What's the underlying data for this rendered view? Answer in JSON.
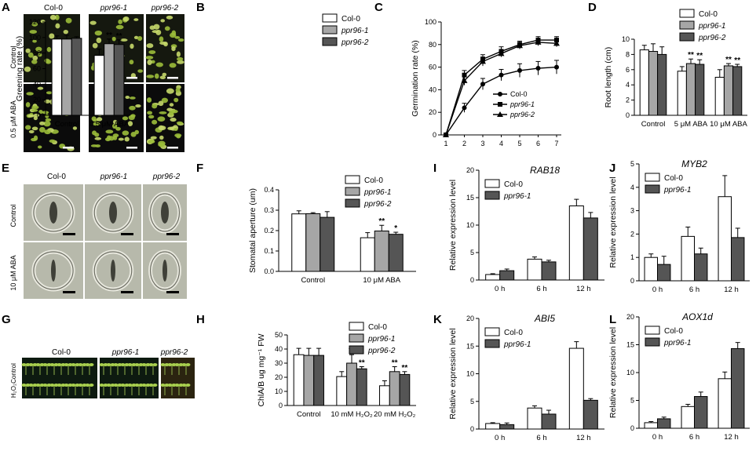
{
  "figure": {
    "panels": {
      "A": {
        "letter": "A",
        "cols": [
          "Col-0",
          "ppr96-1",
          "ppr96-2"
        ],
        "rows": [
          "Control",
          "0.5 μM ABA"
        ]
      },
      "E": {
        "letter": "E",
        "cols": [
          "Col-0",
          "ppr96-1",
          "ppr96-2"
        ],
        "rows": [
          "Control",
          "10 μM ABA"
        ]
      },
      "G": {
        "letter": "G",
        "cols": [
          "Col-0",
          "ppr96-1",
          "ppr96-2"
        ],
        "rows": [
          "Control",
          "H₂O₂"
        ]
      }
    },
    "colors": {
      "col0": "#ffffff",
      "ppr1": "#a6a6a6",
      "ppr2": "#555555",
      "plant": "#6a8a2a",
      "bg_dark": "#111111"
    }
  },
  "chart_data": [
    {
      "panel": "B",
      "type": "bar",
      "ylabel": "Greening rate (%)",
      "ylim": [
        0,
        120
      ],
      "yticks": [
        0,
        20,
        40,
        60,
        80,
        100,
        120
      ],
      "categories": [
        "Control",
        "0.5 μM ABA"
      ],
      "series": [
        {
          "name": "Col-0",
          "values": [
            98,
            77
          ],
          "err": [
            4,
            8
          ]
        },
        {
          "name": "ppr96-1",
          "values": [
            98,
            92
          ],
          "err": [
            5,
            6
          ]
        },
        {
          "name": "ppr96-2",
          "values": [
            99,
            91
          ],
          "err": [
            2,
            6
          ]
        }
      ],
      "annotations": [
        {
          "cat": 1,
          "series": 1,
          "text": "**"
        },
        {
          "cat": 1,
          "series": 2,
          "text": "**"
        }
      ],
      "legend": "top-right"
    },
    {
      "panel": "C",
      "type": "line",
      "ylabel": "Germination rate (%)",
      "ylim": [
        0,
        100
      ],
      "yticks": [
        0,
        20,
        40,
        60,
        80,
        100
      ],
      "x": [
        1,
        2,
        3,
        4,
        5,
        6,
        7
      ],
      "series": [
        {
          "name": "Col-0",
          "values": [
            0,
            24,
            45,
            53,
            57,
            59,
            60
          ],
          "err": [
            0,
            4,
            5,
            5,
            6,
            6,
            6
          ],
          "marker": "circle"
        },
        {
          "name": "ppr96-1",
          "values": [
            0,
            53,
            67,
            74,
            80,
            84,
            84
          ],
          "err": [
            0,
            4,
            4,
            4,
            3,
            3,
            3
          ],
          "marker": "square"
        },
        {
          "name": "ppr96-2",
          "values": [
            0,
            48,
            65,
            72,
            79,
            82,
            81
          ],
          "err": [
            0,
            4,
            4,
            3,
            3,
            3,
            3
          ],
          "marker": "triangle"
        }
      ],
      "legend": "bottom-right"
    },
    {
      "panel": "D",
      "type": "bar",
      "ylabel": "Root length (cm)",
      "ylim": [
        0,
        10
      ],
      "yticks": [
        0,
        2,
        4,
        6,
        8,
        10
      ],
      "categories": [
        "Control",
        "5 μM ABA",
        "10 μM ABA"
      ],
      "series": [
        {
          "name": "Col-0",
          "values": [
            8.6,
            5.8,
            5.0
          ],
          "err": [
            0.6,
            0.6,
            1.0
          ]
        },
        {
          "name": "ppr96-1",
          "values": [
            8.4,
            6.8,
            6.5
          ],
          "err": [
            1.0,
            0.6,
            0.3
          ]
        },
        {
          "name": "ppr96-2",
          "values": [
            8.0,
            6.7,
            6.4
          ],
          "err": [
            1.0,
            0.6,
            0.3
          ]
        }
      ],
      "annotations": [
        {
          "cat": 1,
          "series": 1,
          "text": "**"
        },
        {
          "cat": 1,
          "series": 2,
          "text": "**"
        },
        {
          "cat": 2,
          "series": 1,
          "text": "**"
        },
        {
          "cat": 2,
          "series": 2,
          "text": "**"
        }
      ],
      "legend": "top-right"
    },
    {
      "panel": "F",
      "type": "bar",
      "ylabel": "Stomatal aperture (um)",
      "ylim": [
        0,
        0.4
      ],
      "yticks": [
        0.0,
        0.1,
        0.2,
        0.3,
        0.4
      ],
      "categories": [
        "Control",
        "10 μM ABA"
      ],
      "series": [
        {
          "name": "Col-0",
          "values": [
            0.282,
            0.165
          ],
          "err": [
            0.015,
            0.025
          ]
        },
        {
          "name": "ppr96-1",
          "values": [
            0.283,
            0.198
          ],
          "err": [
            0.005,
            0.028
          ]
        },
        {
          "name": "ppr96-2",
          "values": [
            0.265,
            0.182
          ],
          "err": [
            0.028,
            0.01
          ]
        }
      ],
      "annotations": [
        {
          "cat": 1,
          "series": 1,
          "text": "**"
        },
        {
          "cat": 1,
          "series": 2,
          "text": "*"
        }
      ],
      "legend": "top-right"
    },
    {
      "panel": "H",
      "type": "bar",
      "ylabel": "ChlA/B ug mg⁻¹ FW",
      "ylim": [
        0,
        50
      ],
      "yticks": [
        0,
        10,
        20,
        30,
        40,
        50
      ],
      "categories": [
        "Control",
        "10 mM H₂O₂",
        "20 mM H₂O₂"
      ],
      "series": [
        {
          "name": "Col-0",
          "values": [
            36,
            20.5,
            14
          ],
          "err": [
            4.5,
            3.5,
            3.5
          ]
        },
        {
          "name": "ppr96-1",
          "values": [
            35.5,
            30,
            24
          ],
          "err": [
            5,
            6,
            3.5
          ]
        },
        {
          "name": "ppr96-2",
          "values": [
            35.5,
            26,
            22
          ],
          "err": [
            5,
            1.5,
            2
          ]
        }
      ],
      "annotations": [
        {
          "cat": 1,
          "series": 1,
          "text": "**"
        },
        {
          "cat": 1,
          "series": 2,
          "text": "**"
        },
        {
          "cat": 2,
          "series": 1,
          "text": "**"
        },
        {
          "cat": 2,
          "series": 2,
          "text": "**"
        }
      ],
      "legend": "top-right"
    },
    {
      "panel": "I",
      "type": "bar",
      "title": "RAB18",
      "ylabel": "Relative expression level",
      "ylim": [
        0,
        20
      ],
      "yticks": [
        0,
        5,
        10,
        15,
        20
      ],
      "categories": [
        "0 h",
        "6 h",
        "12 h"
      ],
      "series": [
        {
          "name": "Col-0",
          "values": [
            1,
            3.8,
            13.5
          ],
          "err": [
            0.15,
            0.4,
            1.2
          ]
        },
        {
          "name": "ppr96-1",
          "values": [
            1.7,
            3.3,
            11.3
          ],
          "err": [
            0.3,
            0.3,
            1
          ]
        }
      ],
      "legend": "top-left"
    },
    {
      "panel": "J",
      "type": "bar",
      "title": "MYB2",
      "ylabel": "Relative expression level",
      "ylim": [
        0,
        5
      ],
      "yticks": [
        0,
        1,
        2,
        3,
        4,
        5
      ],
      "categories": [
        "0 h",
        "6 h",
        "12 h"
      ],
      "series": [
        {
          "name": "Col-0",
          "values": [
            1,
            1.9,
            3.6
          ],
          "err": [
            0.15,
            0.4,
            0.9
          ]
        },
        {
          "name": "ppr96-1",
          "values": [
            0.7,
            1.15,
            1.85
          ],
          "err": [
            0.35,
            0.25,
            0.4
          ]
        }
      ],
      "legend": "top-left"
    },
    {
      "panel": "K",
      "type": "bar",
      "title": "ABI5",
      "ylabel": "Relative expression level",
      "ylim": [
        0,
        20
      ],
      "yticks": [
        0,
        5,
        10,
        15,
        20
      ],
      "categories": [
        "0 h",
        "6 h",
        "12 h"
      ],
      "series": [
        {
          "name": "Col-0",
          "values": [
            1,
            3.8,
            14.6
          ],
          "err": [
            0.15,
            0.4,
            1.2
          ]
        },
        {
          "name": "ppr96-1",
          "values": [
            0.8,
            2.7,
            5.2
          ],
          "err": [
            0.3,
            0.7,
            0.3
          ]
        }
      ],
      "legend": "top-left"
    },
    {
      "panel": "L",
      "type": "bar",
      "title": "AOX1d",
      "ylabel": "Relative expression level",
      "ylim": [
        0,
        20
      ],
      "yticks": [
        0,
        5,
        10,
        15,
        20
      ],
      "categories": [
        "0 h",
        "6 h",
        "12 h"
      ],
      "series": [
        {
          "name": "Col-0",
          "values": [
            1,
            3.9,
            8.9
          ],
          "err": [
            0.2,
            0.4,
            1.2
          ]
        },
        {
          "name": "ppr96-1",
          "values": [
            1.7,
            5.7,
            14.3
          ],
          "err": [
            0.3,
            0.8,
            1.1
          ]
        }
      ],
      "legend": "top-left"
    }
  ]
}
